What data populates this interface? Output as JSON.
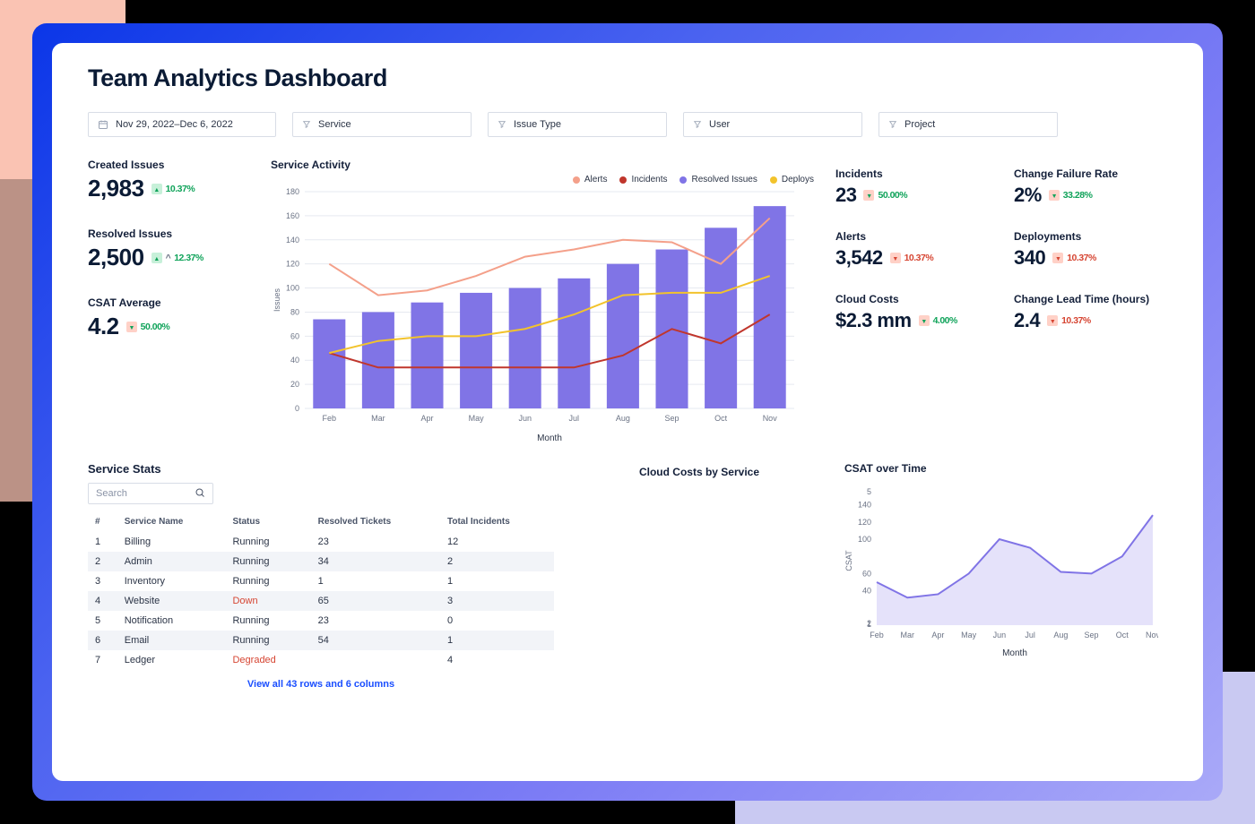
{
  "page": {
    "title": "Team Analytics Dashboard"
  },
  "filters": {
    "date_range": "Nov 29, 2022–Dec 6, 2022",
    "service": "Service",
    "issue_type": "Issue Type",
    "user": "User",
    "project": "Project"
  },
  "left_kpis": {
    "created_issues": {
      "label": "Created Issues",
      "value": "2,983",
      "delta": "10.37%",
      "delta_dir": "up",
      "delta_style": "green"
    },
    "resolved_issues": {
      "label": "Resolved Issues",
      "value": "2,500",
      "delta": "12.37%",
      "delta_dir": "up",
      "delta_style": "green",
      "caret": "^"
    },
    "csat_avg": {
      "label": "CSAT Average",
      "value": "4.2",
      "delta": "50.00%",
      "delta_dir": "down",
      "delta_style": "green2"
    }
  },
  "right_kpis": {
    "incidents": {
      "label": "Incidents",
      "value": "23",
      "delta": "50.00%",
      "delta_dir": "down",
      "delta_style": "green2"
    },
    "cfr": {
      "label": "Change Failure Rate",
      "value": "2%",
      "delta": "33.28%",
      "delta_dir": "down",
      "delta_style": "green2"
    },
    "alerts": {
      "label": "Alerts",
      "value": "3,542",
      "delta": "10.37%",
      "delta_dir": "down",
      "delta_style": "red"
    },
    "deployments": {
      "label": "Deployments",
      "value": "340",
      "delta": "10.37%",
      "delta_dir": "down",
      "delta_style": "red"
    },
    "cloud": {
      "label": "Cloud Costs",
      "value": "$2.3 mm",
      "delta": "4.00%",
      "delta_dir": "down",
      "delta_style": "green2"
    },
    "lead": {
      "label": "Change Lead Time (hours)",
      "value": "2.4",
      "delta": "10.37%",
      "delta_dir": "down",
      "delta_style": "red"
    }
  },
  "service_chart": {
    "title": "Service Activity",
    "type": "bar+line",
    "xlabel": "Month",
    "ylabel": "Issues",
    "ylim": [
      0,
      180
    ],
    "ytick_step": 20,
    "categories": [
      "Feb",
      "Mar",
      "Apr",
      "May",
      "Jun",
      "Jul",
      "Aug",
      "Sep",
      "Oct",
      "Nov"
    ],
    "bars": {
      "name": "Resolved Issues",
      "color": "#8074e6",
      "values": [
        74,
        80,
        88,
        96,
        100,
        108,
        120,
        132,
        150,
        168
      ],
      "bar_width": 0.66
    },
    "lines": [
      {
        "name": "Alerts",
        "color": "#f4a08a",
        "values": [
          120,
          94,
          98,
          110,
          126,
          132,
          140,
          138,
          120,
          158
        ]
      },
      {
        "name": "Incidents",
        "color": "#c0362c",
        "values": [
          46,
          34,
          34,
          34,
          34,
          34,
          44,
          66,
          54,
          78
        ]
      },
      {
        "name": "Deploys",
        "color": "#f2c32c",
        "values": [
          46,
          56,
          60,
          60,
          66,
          78,
          94,
          96,
          96,
          110
        ]
      }
    ],
    "grid_color": "#e6e9f0",
    "axis_color": "#b9c0cc"
  },
  "cloud_costs_panel": {
    "title": "Cloud Costs by Service"
  },
  "csat_chart": {
    "title": "CSAT over Time",
    "type": "area",
    "xlabel": "Month",
    "ylabel": "CSAT",
    "yticks": [
      1,
      2,
      40,
      60,
      100,
      120,
      140,
      5
    ],
    "yticks_display": [
      "1",
      "2",
      "40",
      "60",
      "100",
      "120",
      "140",
      "5"
    ],
    "ylim": [
      0,
      150
    ],
    "categories": [
      "Feb",
      "Mar",
      "Apr",
      "May",
      "Jun",
      "Jul",
      "Aug",
      "Sep",
      "Oct",
      "Nov"
    ],
    "values": [
      50,
      32,
      36,
      60,
      100,
      90,
      62,
      60,
      80,
      128
    ],
    "line_color": "#8074e6",
    "fill_color": "#e5e2fa"
  },
  "service_stats": {
    "title": "Service Stats",
    "search_placeholder": "Search",
    "columns": [
      "#",
      "Service Name",
      "Status",
      "Resolved Tickets",
      "Total Incidents"
    ],
    "rows": [
      {
        "n": "1",
        "name": "Billing",
        "status": "Running",
        "status_class": "running",
        "resolved": "23",
        "incidents": "12"
      },
      {
        "n": "2",
        "name": "Admin",
        "status": "Running",
        "status_class": "running",
        "resolved": "34",
        "incidents": "2"
      },
      {
        "n": "3",
        "name": "Inventory",
        "status": "Running",
        "status_class": "running",
        "resolved": "1",
        "incidents": "1"
      },
      {
        "n": "4",
        "name": "Website",
        "status": "Down",
        "status_class": "down",
        "resolved": "65",
        "incidents": "3"
      },
      {
        "n": "5",
        "name": "Notification",
        "status": "Running",
        "status_class": "running",
        "resolved": "23",
        "incidents": "0"
      },
      {
        "n": "6",
        "name": "Email",
        "status": "Running",
        "status_class": "running",
        "resolved": "54",
        "incidents": "1"
      },
      {
        "n": "7",
        "name": "Ledger",
        "status": "Degraded",
        "status_class": "degraded",
        "resolved": "",
        "incidents": "4"
      }
    ],
    "view_all": "View all 43 rows and 6 columns"
  },
  "colors": {
    "bg_black": "#000000",
    "frame_gradient_from": "#0b36e8",
    "frame_gradient_to": "#a9a9f8",
    "card_bg": "#ffffff",
    "text": "#0b1b35",
    "muted": "#6b7385",
    "border": "#d8dde6"
  }
}
